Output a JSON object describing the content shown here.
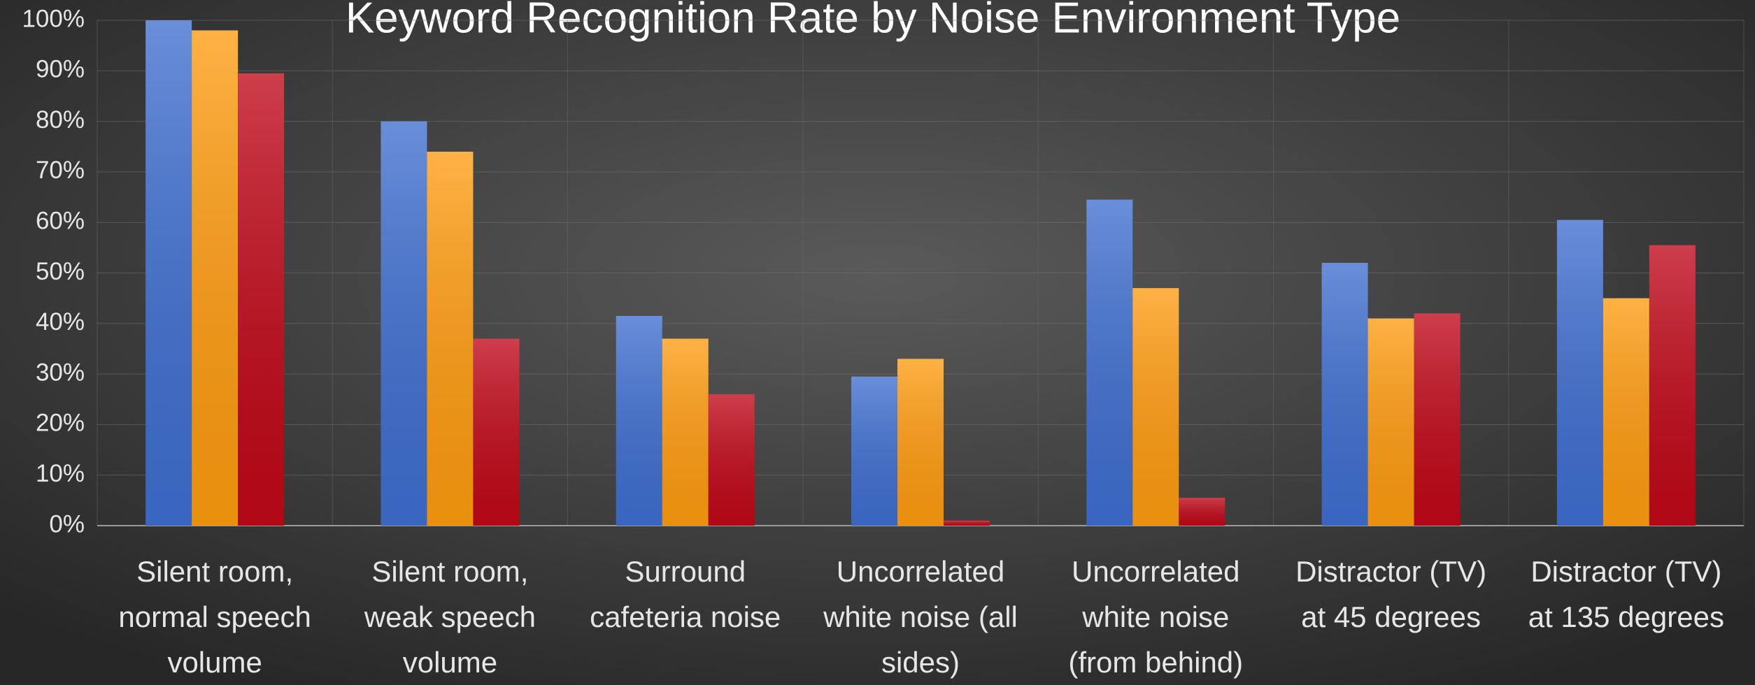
{
  "chart_data": {
    "type": "bar",
    "title": "Keyword Recognition Rate by Noise Environment Type",
    "categories": [
      "Silent room, normal speech volume",
      "Silent room, weak speech volume",
      "Surround cafeteria noise",
      "Uncorrelated white noise (all sides)",
      "Uncorrelated white noise (from behind)",
      "Distractor (TV) at 45 degrees",
      "Distractor (TV) at 135 degrees"
    ],
    "series": [
      {
        "color": "#3f6fd0",
        "values": [
          100,
          80,
          41.5,
          29.5,
          64.5,
          52,
          60.5
        ]
      },
      {
        "color": "#ff9c10",
        "values": [
          98,
          74,
          37,
          33,
          47,
          41,
          45
        ]
      },
      {
        "color": "#c00818",
        "values": [
          89.5,
          37,
          26,
          1,
          5.5,
          42,
          55.5
        ]
      }
    ],
    "ylim": [
      0,
      100
    ],
    "yticks": [
      {
        "value": 0,
        "label": "0%"
      },
      {
        "value": 10,
        "label": "10%"
      },
      {
        "value": 20,
        "label": "20%"
      },
      {
        "value": 30,
        "label": "30%"
      },
      {
        "value": 40,
        "label": "40%"
      },
      {
        "value": 50,
        "label": "50%"
      },
      {
        "value": 60,
        "label": "60%"
      },
      {
        "value": 70,
        "label": "70%"
      },
      {
        "value": 80,
        "label": "80%"
      },
      {
        "value": 90,
        "label": "90%"
      },
      {
        "value": 100,
        "label": "100%"
      }
    ],
    "grid": true
  }
}
